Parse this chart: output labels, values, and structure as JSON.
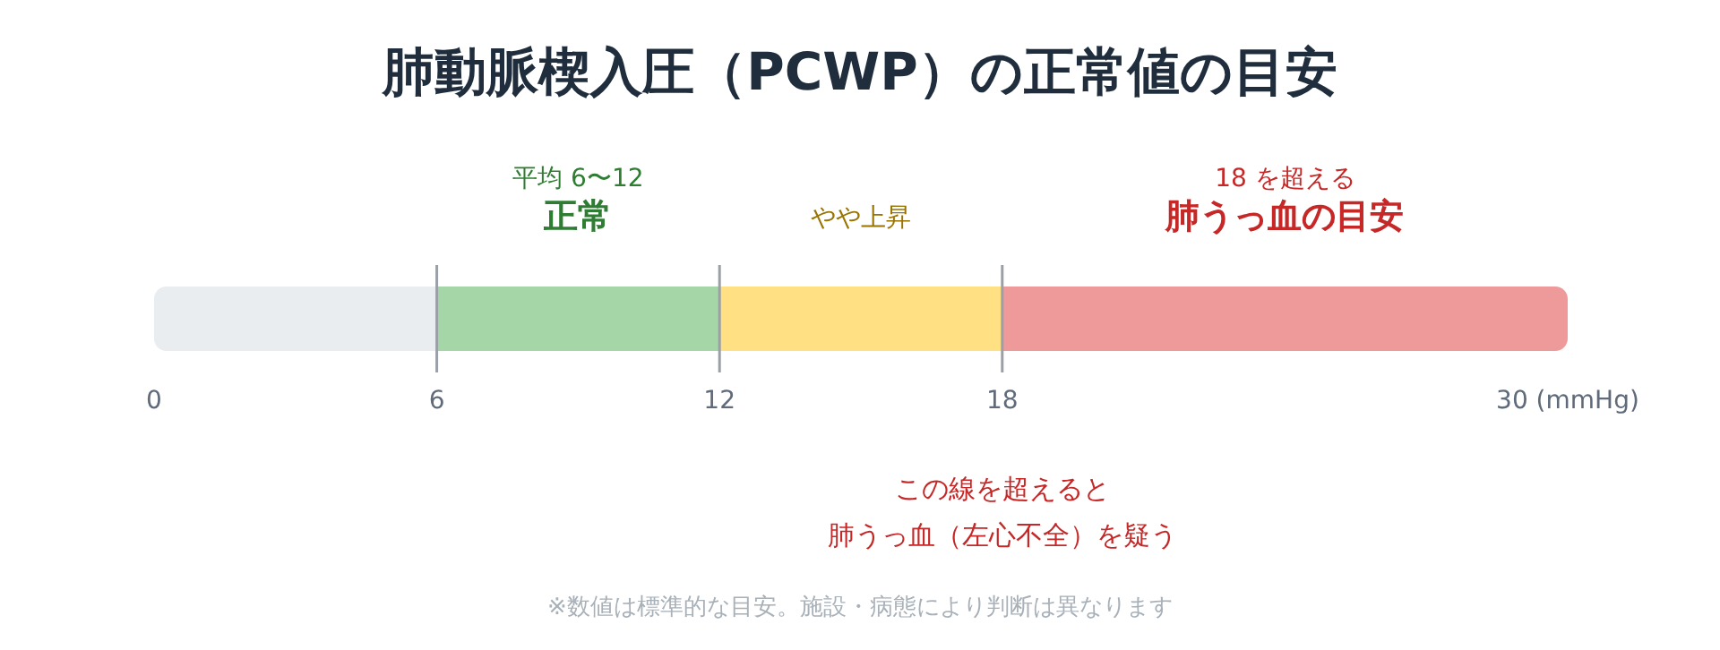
{
  "chart_data": {
    "type": "bar",
    "orientation": "horizontal",
    "stacked": true,
    "title": "肺動脈楔入圧（PCWP）の正常値の目安",
    "categories": [
      null
    ],
    "series": [
      {
        "color": "#e9edf0",
        "values": [
          6
        ]
      },
      {
        "name": "正常",
        "color": "#a5d6a7",
        "values": [
          6
        ]
      },
      {
        "name": "やや上昇",
        "color": "#ffe082",
        "values": [
          6
        ]
      },
      {
        "name": "肺うっ血の目安",
        "color": "#ef9a9a",
        "values": [
          12
        ]
      }
    ],
    "xlim": [
      0,
      30
    ],
    "xticks": [
      0,
      6,
      12,
      18,
      {
        "value": 30,
        "label": "30 (mmHg)"
      }
    ],
    "ref_lines": [
      {
        "axis": "x",
        "value": 6,
        "color": "#9aa0a6"
      },
      {
        "axis": "x",
        "value": 12,
        "color": "#9aa0a6"
      },
      {
        "axis": "x",
        "value": 18,
        "color": "#9aa0a6"
      }
    ],
    "annotations": [
      "平均 6〜12",
      "18 を超える",
      "この線を超えると",
      "肺うっ血（左心不全）を疑う",
      "※数値は標準的な目安。施設・病態により判断は異なります"
    ]
  }
}
